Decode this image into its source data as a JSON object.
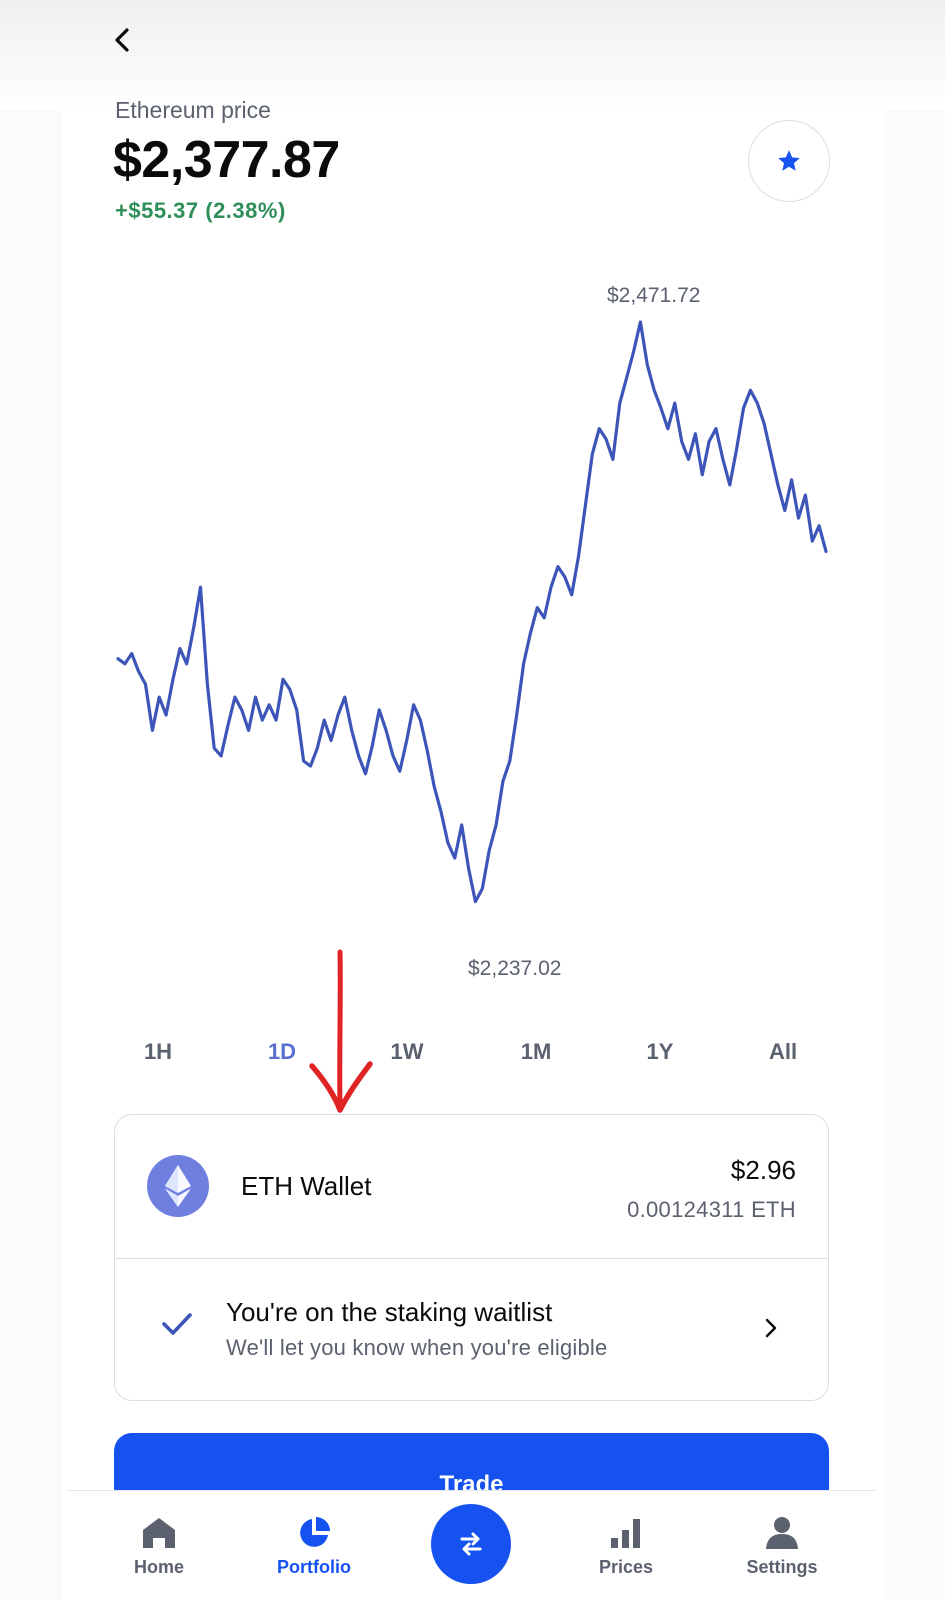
{
  "header": {
    "back_icon": "chevron-left-icon",
    "price_label": "Ethereum price",
    "price_value": "$2,377.87",
    "price_change": "+$55.37 (2.38%)",
    "favorite_icon": "star-icon",
    "colors": {
      "positive": "#2f8f5a",
      "accent": "#1652f0",
      "star": "#1652f0"
    }
  },
  "chart": {
    "high_label": "$2,471.72",
    "low_label": "$2,237.02",
    "line_color": "#3d55b8"
  },
  "chart_data": {
    "type": "line",
    "title": "",
    "xlabel": "",
    "ylabel": "",
    "ylim": [
      2237.02,
      2471.72
    ],
    "grid": false,
    "series": [
      {
        "values": [
          2340,
          2338,
          2342,
          2335,
          2330,
          2312,
          2325,
          2318,
          2332,
          2344,
          2338,
          2352,
          2368,
          2330,
          2305,
          2302,
          2314,
          2325,
          2320,
          2312,
          2325,
          2316,
          2322,
          2316,
          2332,
          2328,
          2320,
          2300,
          2298,
          2305,
          2316,
          2308,
          2318,
          2325,
          2312,
          2302,
          2295,
          2306,
          2320,
          2312,
          2302,
          2296,
          2308,
          2322,
          2316,
          2304,
          2290,
          2280,
          2268,
          2262,
          2275,
          2258,
          2245,
          2250,
          2265,
          2275,
          2292,
          2300,
          2318,
          2338,
          2350,
          2360,
          2356,
          2368,
          2376,
          2372,
          2365,
          2380,
          2400,
          2420,
          2430,
          2426,
          2418,
          2440,
          2450,
          2460,
          2471.72,
          2455,
          2445,
          2438,
          2430,
          2440,
          2425,
          2418,
          2428,
          2412,
          2425,
          2430,
          2418,
          2408,
          2422,
          2438,
          2445,
          2440,
          2432,
          2420,
          2408,
          2398,
          2410,
          2395,
          2404,
          2386,
          2392,
          2382
        ]
      }
    ]
  },
  "ranges": {
    "tabs": [
      {
        "label": "1H"
      },
      {
        "label": "1D"
      },
      {
        "label": "1W"
      },
      {
        "label": "1M"
      },
      {
        "label": "1Y"
      },
      {
        "label": "All"
      }
    ],
    "active": "1D",
    "active_color": "#5a6fd0"
  },
  "annotation": {
    "arrow_icon": "red-arrow-down-icon",
    "color": "#e02424"
  },
  "wallet": {
    "icon": "ethereum-icon",
    "name": "ETH Wallet",
    "usd_balance": "$2.96",
    "eth_balance": "0.00124311 ETH"
  },
  "staking": {
    "icon": "checkmark-icon",
    "title": "You're on the staking waitlist",
    "subtitle": "We'll let you know when you're eligible",
    "chevron_icon": "chevron-right-icon"
  },
  "trade_button": {
    "label": "Trade"
  },
  "bottom_nav": {
    "items": [
      {
        "label": "Home",
        "icon": "home-icon"
      },
      {
        "label": "Portfolio",
        "icon": "pie-chart-icon"
      },
      {
        "label": "Prices",
        "icon": "bar-chart-icon"
      },
      {
        "label": "Settings",
        "icon": "person-icon"
      }
    ],
    "active": "Portfolio",
    "center_icon": "swap-arrows-icon"
  }
}
